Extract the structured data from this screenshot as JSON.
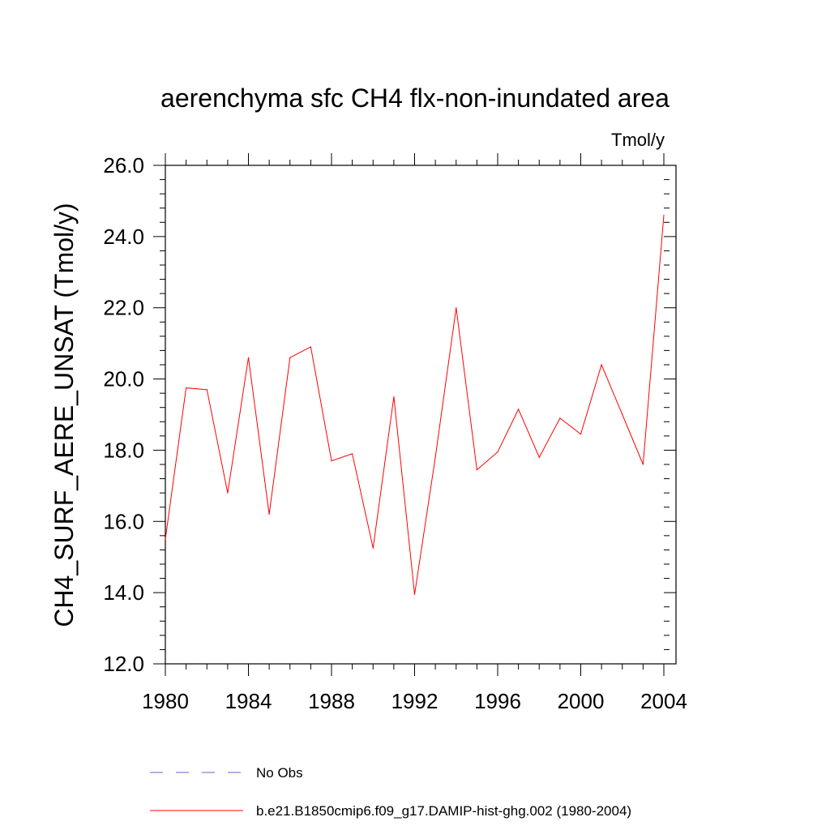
{
  "chart_data": {
    "type": "line",
    "title": "aerenchyma sfc CH4 flx-non-inundated area",
    "units_label": "Tmol/y",
    "ylabel": "CH4_SURF_AERE_UNSAT  (Tmol/y)",
    "xlabel": "",
    "xlim": [
      1980,
      2004
    ],
    "ylim": [
      12.0,
      26.0
    ],
    "x_ticks": [
      "1980",
      "1984",
      "1988",
      "1992",
      "1996",
      "2000",
      "2004"
    ],
    "y_ticks": [
      "12.0",
      "14.0",
      "16.0",
      "18.0",
      "20.0",
      "22.0",
      "24.0",
      "26.0"
    ],
    "series": [
      {
        "name": "b.e21.B1850cmip6.f09_g17.DAMIP-hist-ghg.002 (1980-2004)",
        "color": "#ff0000",
        "x": [
          1980,
          1981,
          1982,
          1983,
          1984,
          1985,
          1986,
          1987,
          1988,
          1989,
          1990,
          1991,
          1992,
          1993,
          1994,
          1995,
          1996,
          1997,
          1998,
          1999,
          2000,
          2001,
          2002,
          2003,
          2004
        ],
        "y": [
          15.5,
          19.75,
          19.7,
          16.8,
          20.6,
          16.2,
          20.6,
          20.9,
          17.7,
          17.9,
          15.25,
          19.5,
          13.95,
          17.8,
          22.0,
          17.45,
          17.95,
          19.15,
          17.8,
          18.9,
          18.45,
          20.4,
          19.0,
          17.6,
          24.6
        ]
      }
    ],
    "legend": [
      {
        "label": "No Obs",
        "style": "dashed",
        "color": "#6b5fd6"
      },
      {
        "label": "b.e21.B1850cmip6.f09_g17.DAMIP-hist-ghg.002 (1980-2004)",
        "style": "solid",
        "color": "#ff0000"
      }
    ],
    "legend_position": "bottom"
  }
}
